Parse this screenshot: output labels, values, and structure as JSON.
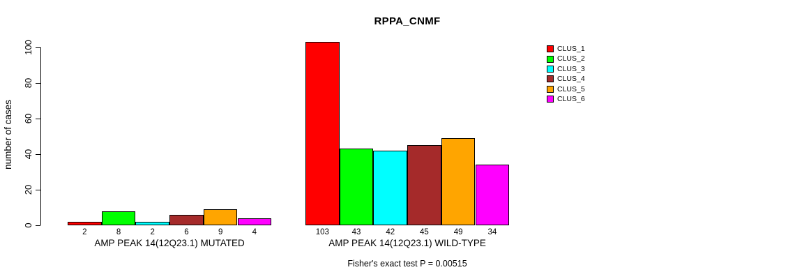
{
  "chart_data": {
    "type": "bar",
    "title": "RPPA_CNMF",
    "ylabel": "number of cases",
    "ylim": [
      0,
      100
    ],
    "yticks": [
      0,
      20,
      40,
      60,
      80,
      100
    ],
    "grid": false,
    "legend_position": "right",
    "legend": [
      {
        "label": "CLUS_1",
        "color": "#FF0000"
      },
      {
        "label": "CLUS_2",
        "color": "#00FF00"
      },
      {
        "label": "CLUS_3",
        "color": "#00FFFF"
      },
      {
        "label": "CLUS_4",
        "color": "#A52A2A"
      },
      {
        "label": "CLUS_5",
        "color": "#FFA500"
      },
      {
        "label": "CLUS_6",
        "color": "#FF00FF"
      }
    ],
    "groups": [
      {
        "label": "AMP PEAK 14(12Q23.1) MUTATED",
        "values": [
          2,
          8,
          2,
          6,
          9,
          4
        ]
      },
      {
        "label": "AMP PEAK 14(12Q23.1) WILD-TYPE",
        "values": [
          103,
          43,
          42,
          45,
          49,
          34
        ]
      }
    ],
    "footnote": "Fisher's exact test P = 0.00515"
  }
}
